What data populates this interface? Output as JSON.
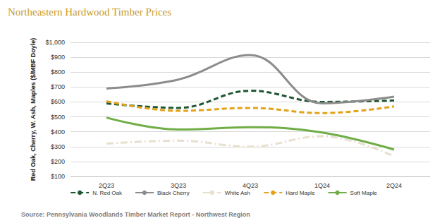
{
  "chart_data": {
    "type": "line",
    "title": "Northeastern Hardwood Timber Prices",
    "y_label": "Red Oak, Cherry, W. Ash, Maples ($/MBF Doyle)",
    "annotations": [
      "Source: Pennsylvania Woodlands Timber Market Report - Northwest Region"
    ],
    "categories": [
      "2Q23",
      "3Q23",
      "4Q23",
      "1Q24",
      "2Q24"
    ],
    "series": [
      {
        "name": "N. Red Oak",
        "color": "#1e5631",
        "line_style": "dashed",
        "values": [
          590,
          560,
          675,
          600,
          610
        ]
      },
      {
        "name": "Black Cherry",
        "color": "#8c8c8c",
        "line_style": "solid",
        "values": [
          690,
          750,
          915,
          590,
          635
        ]
      },
      {
        "name": "White Ash",
        "color": "#e8dfcf",
        "line_style": "dashdot",
        "values": [
          320,
          340,
          300,
          370,
          235
        ]
      },
      {
        "name": "Hard Maple",
        "color": "#e3a21a",
        "line_style": "dashed",
        "values": [
          605,
          540,
          560,
          525,
          570
        ]
      },
      {
        "name": "Soft Maple",
        "color": "#70ad47",
        "line_style": "solid",
        "values": [
          495,
          415,
          430,
          395,
          280
        ]
      }
    ],
    "ylim": [
      100,
      1000
    ],
    "yticks": [
      {
        "value": 100,
        "label": "$100"
      },
      {
        "value": 200,
        "label": "$200"
      },
      {
        "value": 300,
        "label": "$300"
      },
      {
        "value": 400,
        "label": "$400"
      },
      {
        "value": 500,
        "label": "$500"
      },
      {
        "value": 600,
        "label": "$600"
      },
      {
        "value": 700,
        "label": "$700"
      },
      {
        "value": 800,
        "label": "$800"
      },
      {
        "value": 900,
        "label": "$900"
      },
      {
        "value": 1000,
        "label": "$1,000"
      }
    ],
    "grid": true,
    "legend": "bottom"
  }
}
